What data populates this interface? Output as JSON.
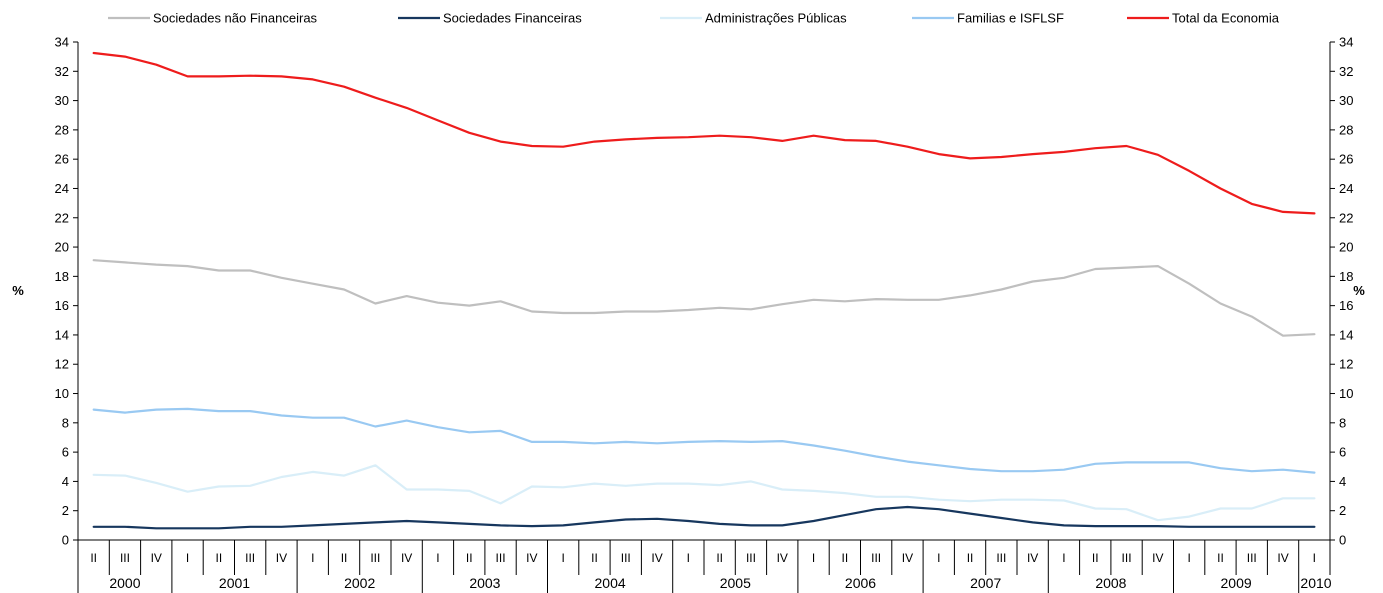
{
  "chart_data": {
    "type": "line",
    "ylabel_left": "%",
    "ylabel_right": "%",
    "ylim": [
      0,
      34
    ],
    "yticks": [
      "0",
      "2",
      "4",
      "6",
      "8",
      "10",
      "12",
      "14",
      "16",
      "18",
      "20",
      "22",
      "24",
      "26",
      "28",
      "30",
      "32",
      "34"
    ],
    "grid": false,
    "legend_position": "top",
    "categories": [
      "II",
      "III",
      "IV",
      "I",
      "II",
      "III",
      "IV",
      "I",
      "II",
      "III",
      "IV",
      "I",
      "II",
      "III",
      "IV",
      "I",
      "II",
      "III",
      "IV",
      "I",
      "II",
      "III",
      "IV",
      "I",
      "II",
      "III",
      "IV",
      "I",
      "II",
      "III",
      "IV",
      "I",
      "II",
      "III",
      "IV",
      "I",
      "II",
      "III",
      "IV",
      "I"
    ],
    "years": [
      {
        "label": "2000"
      },
      {
        "label": "2001"
      },
      {
        "label": "2002"
      },
      {
        "label": "2003"
      },
      {
        "label": "2004"
      },
      {
        "label": "2005"
      },
      {
        "label": "2006"
      },
      {
        "label": "2007"
      },
      {
        "label": "2008"
      },
      {
        "label": "2009"
      },
      {
        "label": "2010"
      }
    ],
    "series": [
      {
        "name": "Sociedades não Financeiras",
        "color": "#bfbfbf",
        "values": [
          19.1,
          18.95,
          18.8,
          18.7,
          18.4,
          18.4,
          17.9,
          17.5,
          17.1,
          16.15,
          16.65,
          16.2,
          16.0,
          16.3,
          15.6,
          15.5,
          15.5,
          15.6,
          15.6,
          15.7,
          15.85,
          15.75,
          16.1,
          16.4,
          16.3,
          16.45,
          16.4,
          16.4,
          16.7,
          17.1,
          17.65,
          17.9,
          18.5,
          18.6,
          18.7,
          17.5,
          16.15,
          15.25,
          13.95,
          14.05
        ]
      },
      {
        "name": "Sociedades Financeiras",
        "color": "#17375e",
        "values": [
          0.9,
          0.9,
          0.8,
          0.8,
          0.8,
          0.9,
          0.9,
          1.0,
          1.1,
          1.2,
          1.3,
          1.2,
          1.1,
          1.0,
          0.95,
          1.0,
          1.2,
          1.4,
          1.45,
          1.3,
          1.1,
          1.0,
          1.0,
          1.3,
          1.7,
          2.1,
          2.25,
          2.1,
          1.8,
          1.5,
          1.2,
          1.0,
          0.95,
          0.95,
          0.95,
          0.9,
          0.9,
          0.9,
          0.9,
          0.9
        ]
      },
      {
        "name": "Administrações Públicas",
        "color": "#d9eef8",
        "values": [
          4.45,
          4.4,
          3.9,
          3.3,
          3.65,
          3.7,
          4.3,
          4.65,
          4.4,
          5.1,
          3.45,
          3.45,
          3.35,
          2.5,
          3.65,
          3.6,
          3.85,
          3.7,
          3.85,
          3.85,
          3.75,
          4.0,
          3.45,
          3.35,
          3.2,
          2.95,
          2.95,
          2.75,
          2.65,
          2.75,
          2.75,
          2.7,
          2.15,
          2.1,
          1.35,
          1.6,
          2.15,
          2.15,
          2.85,
          2.85
        ]
      },
      {
        "name": "Familias e ISFLSF",
        "color": "#99c9f2",
        "values": [
          8.9,
          8.7,
          8.9,
          8.95,
          8.8,
          8.8,
          8.5,
          8.35,
          8.35,
          7.75,
          8.15,
          7.7,
          7.35,
          7.45,
          6.7,
          6.7,
          6.6,
          6.7,
          6.6,
          6.7,
          6.75,
          6.7,
          6.75,
          6.45,
          6.1,
          5.7,
          5.35,
          5.1,
          4.85,
          4.7,
          4.7,
          4.8,
          5.2,
          5.3,
          5.3,
          5.3,
          4.9,
          4.7,
          4.8,
          4.6
        ]
      },
      {
        "name": "Total da Economia",
        "color": "#ee1c1c",
        "values": [
          33.25,
          33.0,
          32.45,
          31.65,
          31.65,
          31.7,
          31.65,
          31.45,
          30.95,
          30.2,
          29.5,
          28.65,
          27.8,
          27.2,
          26.9,
          26.85,
          27.2,
          27.35,
          27.45,
          27.5,
          27.6,
          27.5,
          27.25,
          27.6,
          27.3,
          27.25,
          26.85,
          26.35,
          26.05,
          26.15,
          26.35,
          26.5,
          26.75,
          26.9,
          26.3,
          25.2,
          24.0,
          22.95,
          22.4,
          22.3
        ]
      }
    ]
  }
}
